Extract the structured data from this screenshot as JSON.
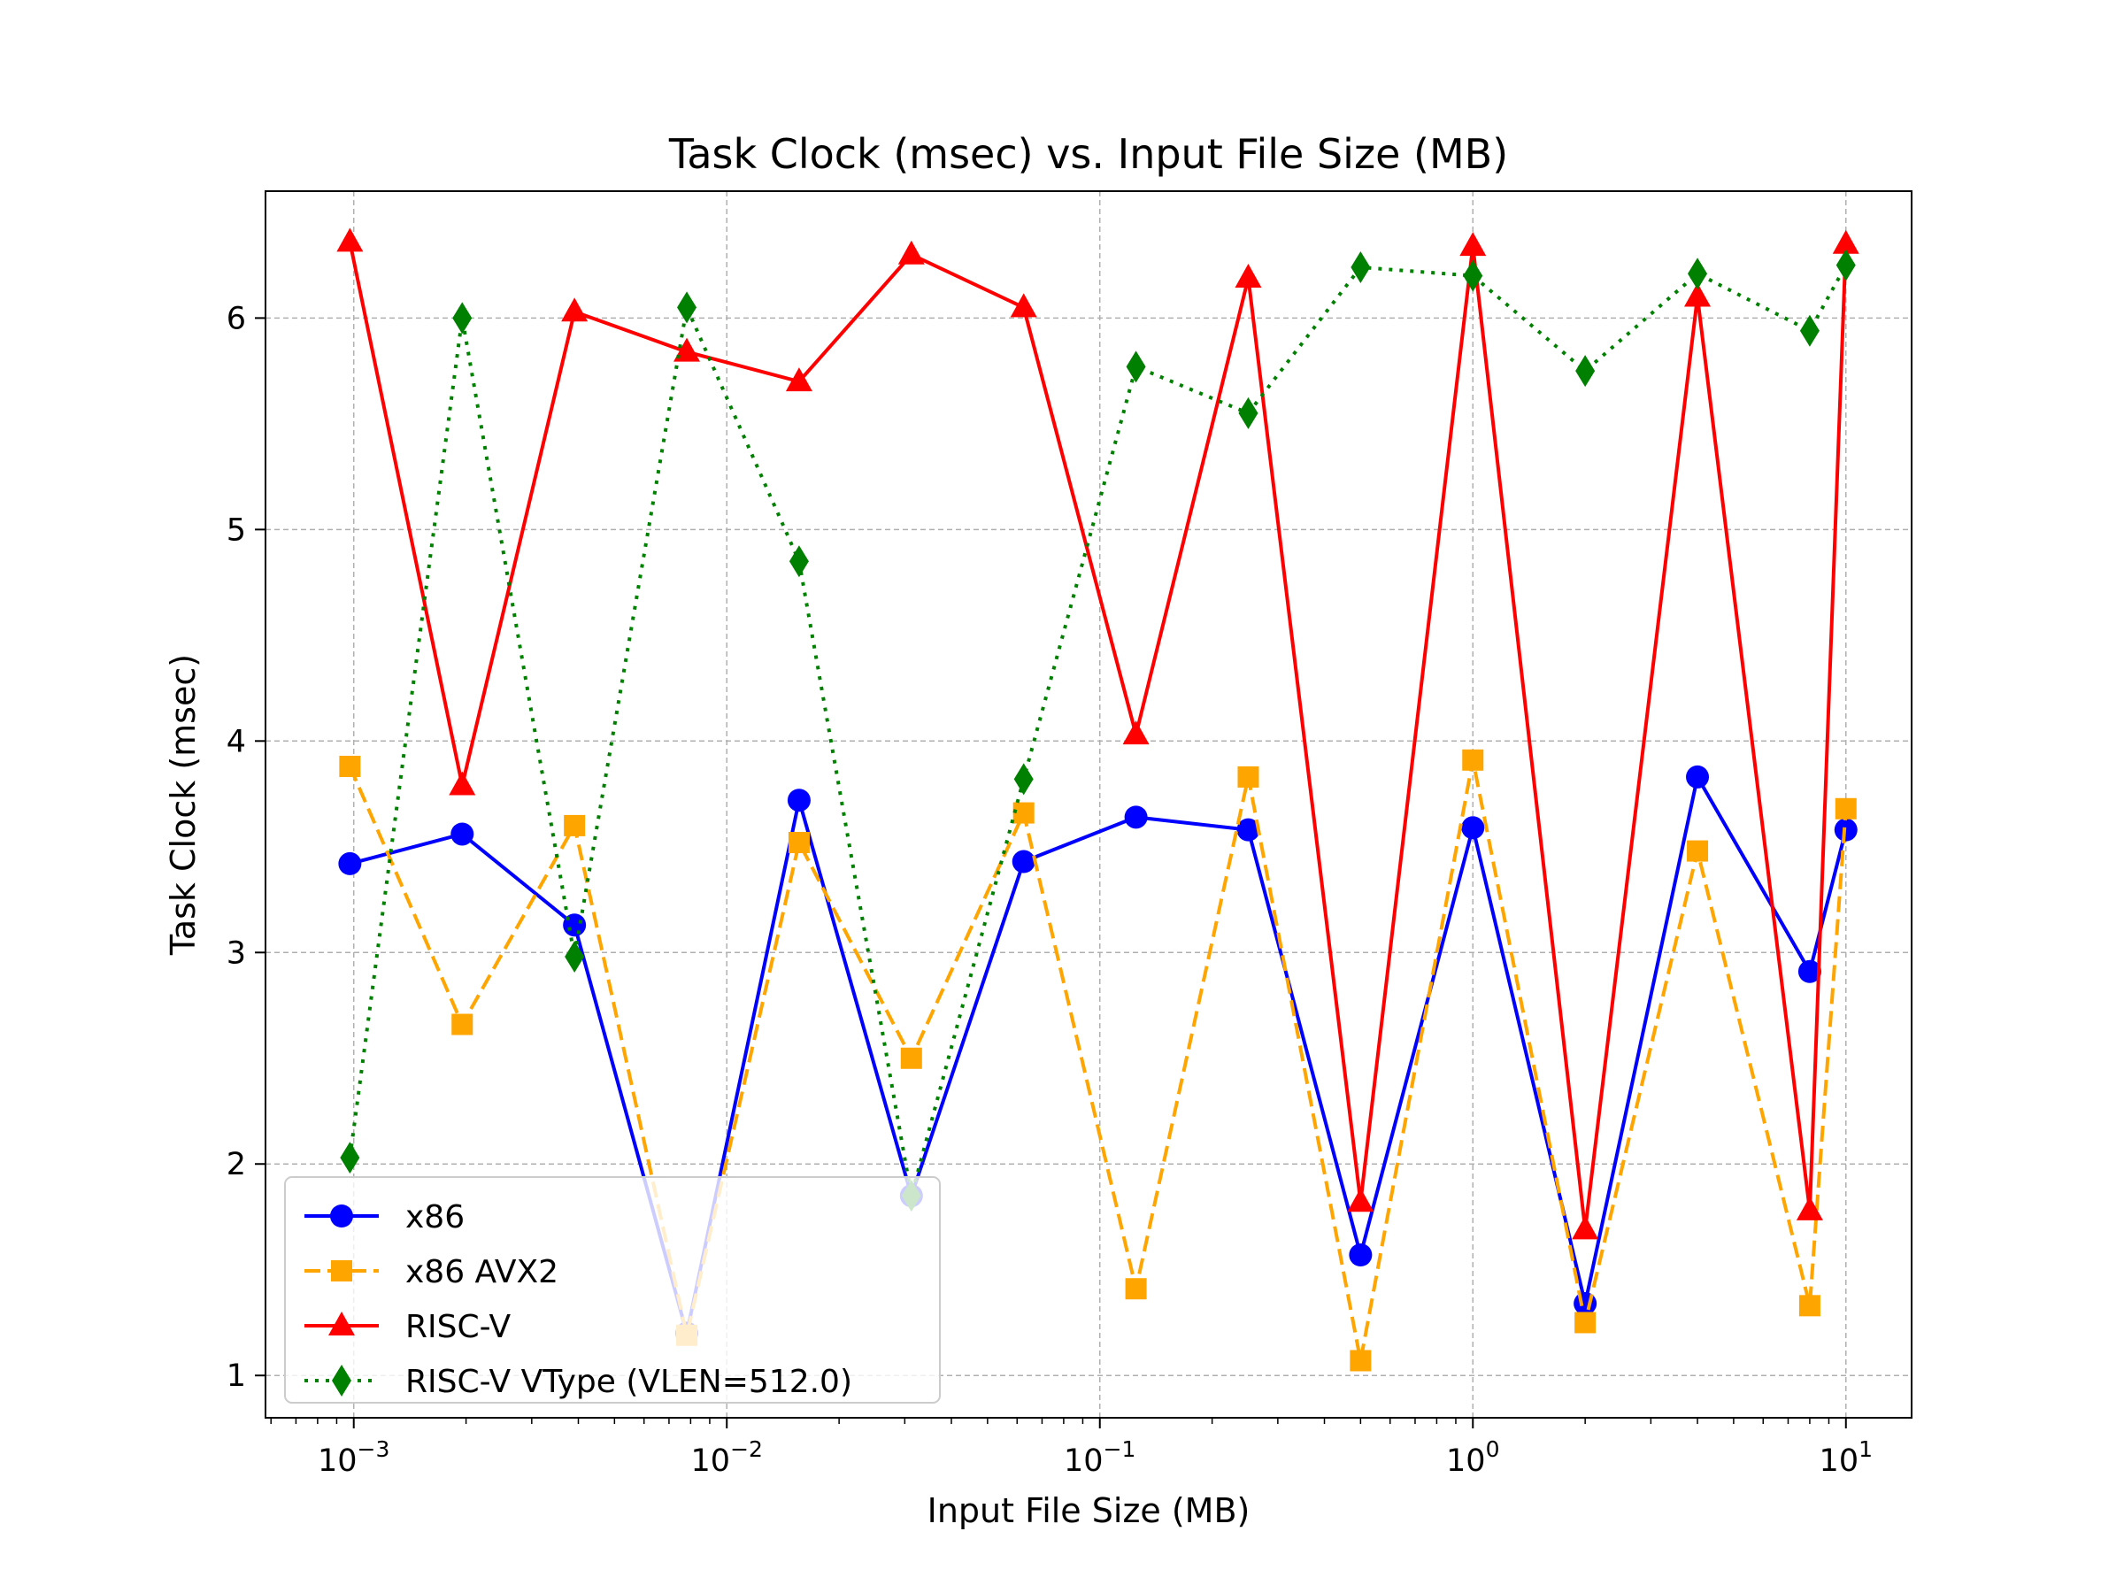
{
  "chart_data": {
    "type": "line",
    "title": "Task Clock (msec) vs. Input File Size (MB)",
    "xlabel": "Input File Size (MB)",
    "ylabel": "Task Clock (msec)",
    "xscale": "log",
    "xlim": [
      0.00058,
      15
    ],
    "ylim": [
      0.8,
      6.6
    ],
    "grid": true,
    "legend_position": "lower-left",
    "x_ticks": [
      {
        "value": 0.001,
        "base": "10",
        "exp": "−3"
      },
      {
        "value": 0.01,
        "base": "10",
        "exp": "−2"
      },
      {
        "value": 0.1,
        "base": "10",
        "exp": "−1"
      },
      {
        "value": 1,
        "base": "10",
        "exp": "0"
      },
      {
        "value": 10,
        "base": "10",
        "exp": "1"
      }
    ],
    "y_ticks": [
      {
        "value": 1,
        "label": "1"
      },
      {
        "value": 2,
        "label": "2"
      },
      {
        "value": 3,
        "label": "3"
      },
      {
        "value": 4,
        "label": "4"
      },
      {
        "value": 5,
        "label": "5"
      },
      {
        "value": 6,
        "label": "6"
      }
    ],
    "x": [
      0.0009765625,
      0.001953125,
      0.00390625,
      0.0078125,
      0.015625,
      0.03125,
      0.0625,
      0.125,
      0.25,
      0.5,
      1,
      2,
      4,
      8,
      10
    ],
    "series": [
      {
        "name": "x86",
        "color": "#0000ff",
        "marker": "circle",
        "linestyle": "solid",
        "values": [
          3.42,
          3.56,
          3.13,
          1.2,
          3.72,
          1.85,
          3.43,
          3.64,
          3.58,
          1.57,
          3.59,
          1.34,
          3.83,
          2.91,
          3.58
        ]
      },
      {
        "name": "x86 AVX2",
        "color": "#ffa500",
        "marker": "square",
        "linestyle": "dashed",
        "values": [
          3.88,
          2.66,
          3.6,
          1.19,
          3.52,
          2.5,
          3.66,
          1.41,
          3.83,
          1.07,
          3.91,
          1.25,
          3.48,
          1.33,
          3.68
        ]
      },
      {
        "name": "RISC-V",
        "color": "#ff0000",
        "marker": "triangle",
        "linestyle": "solid",
        "values": [
          6.36,
          3.79,
          6.03,
          5.84,
          5.7,
          6.3,
          6.05,
          4.03,
          6.19,
          1.82,
          6.34,
          1.69,
          6.1,
          1.78,
          6.35
        ]
      },
      {
        "name": "RISC-V VType (VLEN=512.0)",
        "color": "#008000",
        "marker": "diamond",
        "linestyle": "dotted",
        "values": [
          2.03,
          6.0,
          2.98,
          6.05,
          4.85,
          1.85,
          3.82,
          5.77,
          5.55,
          6.24,
          6.2,
          5.75,
          6.21,
          5.94,
          6.25
        ]
      }
    ]
  }
}
